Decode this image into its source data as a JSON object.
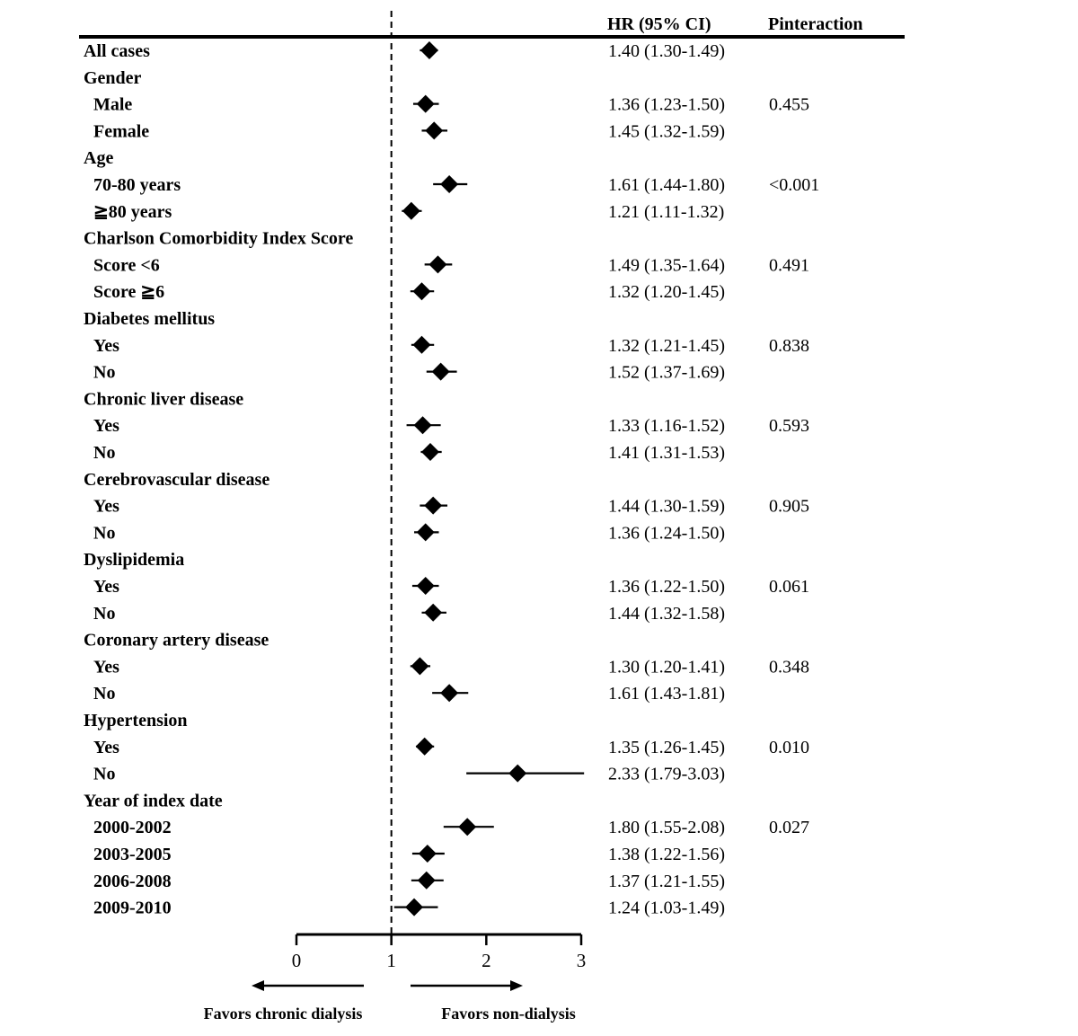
{
  "chart_data": {
    "type": "forest",
    "headers": {
      "hr": "HR (95% CI)",
      "p": "Pinteraction"
    },
    "xlim": [
      0,
      3
    ],
    "x_ticks": [
      "0",
      "1",
      "2",
      "3"
    ],
    "reference_line": 1,
    "favor_left": "Favors  chronic dialysis",
    "favor_right": "Favors non-dialysis",
    "colors": {
      "marker": "#000000",
      "text": "#111111"
    },
    "rows": [
      {
        "label": "All cases",
        "level": 0,
        "hr": 1.4,
        "lo": 1.3,
        "hi": 1.49,
        "hr_text": "1.40 (1.30-1.49)",
        "p": ""
      },
      {
        "label": "Gender",
        "level": 0
      },
      {
        "label": "Male",
        "level": 1,
        "hr": 1.36,
        "lo": 1.23,
        "hi": 1.5,
        "hr_text": "1.36 (1.23-1.50)",
        "p": "0.455"
      },
      {
        "label": "Female",
        "level": 1,
        "hr": 1.45,
        "lo": 1.32,
        "hi": 1.59,
        "hr_text": "1.45 (1.32-1.59)",
        "p": ""
      },
      {
        "label": "Age",
        "level": 0
      },
      {
        "label": "70-80 years",
        "level": 1,
        "hr": 1.61,
        "lo": 1.44,
        "hi": 1.8,
        "hr_text": "1.61 (1.44-1.80)",
        "p": "<0.001"
      },
      {
        "label": "≧80 years",
        "level": 1,
        "hr": 1.21,
        "lo": 1.11,
        "hi": 1.32,
        "hr_text": "1.21 (1.11-1.32)",
        "p": ""
      },
      {
        "label": "Charlson Comorbidity Index Score",
        "level": 0
      },
      {
        "label": "Score <6",
        "level": 1,
        "hr": 1.49,
        "lo": 1.35,
        "hi": 1.64,
        "hr_text": "1.49 (1.35-1.64)",
        "p": "0.491"
      },
      {
        "label": "Score ≧6",
        "level": 1,
        "hr": 1.32,
        "lo": 1.2,
        "hi": 1.45,
        "hr_text": "1.32 (1.20-1.45)",
        "p": ""
      },
      {
        "label": "Diabetes mellitus",
        "level": 0
      },
      {
        "label": "Yes",
        "level": 1,
        "hr": 1.32,
        "lo": 1.21,
        "hi": 1.45,
        "hr_text": "1.32 (1.21-1.45)",
        "p": "0.838"
      },
      {
        "label": "No",
        "level": 1,
        "hr": 1.52,
        "lo": 1.37,
        "hi": 1.69,
        "hr_text": "1.52 (1.37-1.69)",
        "p": ""
      },
      {
        "label": "Chronic liver disease",
        "level": 0
      },
      {
        "label": "Yes",
        "level": 1,
        "hr": 1.33,
        "lo": 1.16,
        "hi": 1.52,
        "hr_text": "1.33 (1.16-1.52)",
        "p": "0.593"
      },
      {
        "label": "No",
        "level": 1,
        "hr": 1.41,
        "lo": 1.31,
        "hi": 1.53,
        "hr_text": "1.41 (1.31-1.53)",
        "p": ""
      },
      {
        "label": "Cerebrovascular disease",
        "level": 0
      },
      {
        "label": "Yes",
        "level": 1,
        "hr": 1.44,
        "lo": 1.3,
        "hi": 1.59,
        "hr_text": "1.44 (1.30-1.59)",
        "p": "0.905"
      },
      {
        "label": "No",
        "level": 1,
        "hr": 1.36,
        "lo": 1.24,
        "hi": 1.5,
        "hr_text": "1.36 (1.24-1.50)",
        "p": ""
      },
      {
        "label": "Dyslipidemia",
        "level": 0
      },
      {
        "label": "Yes",
        "level": 1,
        "hr": 1.36,
        "lo": 1.22,
        "hi": 1.5,
        "hr_text": "1.36 (1.22-1.50)",
        "p": "0.061"
      },
      {
        "label": "No",
        "level": 1,
        "hr": 1.44,
        "lo": 1.32,
        "hi": 1.58,
        "hr_text": "1.44 (1.32-1.58)",
        "p": ""
      },
      {
        "label": "Coronary artery disease",
        "level": 0
      },
      {
        "label": "Yes",
        "level": 1,
        "hr": 1.3,
        "lo": 1.2,
        "hi": 1.41,
        "hr_text": "1.30 (1.20-1.41)",
        "p": "0.348"
      },
      {
        "label": "No",
        "level": 1,
        "hr": 1.61,
        "lo": 1.43,
        "hi": 1.81,
        "hr_text": "1.61 (1.43-1.81)",
        "p": ""
      },
      {
        "label": "Hypertension",
        "level": 0
      },
      {
        "label": "Yes",
        "level": 1,
        "hr": 1.35,
        "lo": 1.26,
        "hi": 1.45,
        "hr_text": "1.35 (1.26-1.45)",
        "p": "0.010"
      },
      {
        "label": "No",
        "level": 1,
        "hr": 2.33,
        "lo": 1.79,
        "hi": 3.03,
        "hr_text": "2.33 (1.79-3.03)",
        "p": ""
      },
      {
        "label": "Year of index date",
        "level": 0
      },
      {
        "label": "2000-2002",
        "level": 1,
        "hr": 1.8,
        "lo": 1.55,
        "hi": 2.08,
        "hr_text": "1.80 (1.55-2.08)",
        "p": "0.027"
      },
      {
        "label": "2003-2005",
        "level": 1,
        "hr": 1.38,
        "lo": 1.22,
        "hi": 1.56,
        "hr_text": "1.38 (1.22-1.56)",
        "p": ""
      },
      {
        "label": "2006-2008",
        "level": 1,
        "hr": 1.37,
        "lo": 1.21,
        "hi": 1.55,
        "hr_text": "1.37 (1.21-1.55)",
        "p": ""
      },
      {
        "label": "2009-2010",
        "level": 1,
        "hr": 1.24,
        "lo": 1.03,
        "hi": 1.49,
        "hr_text": "1.24 (1.03-1.49)",
        "p": ""
      }
    ]
  }
}
